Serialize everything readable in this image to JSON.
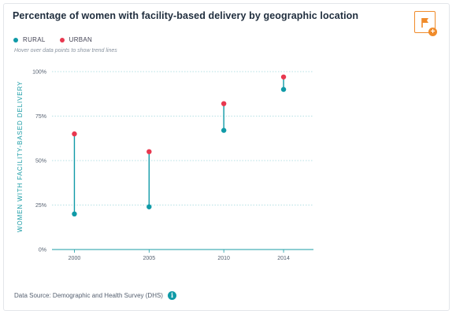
{
  "chart_data": {
    "type": "dumbbell",
    "title": "Percentage of women with facility-based delivery by geographic location",
    "hint": "Hover over data points to show trend lines",
    "ylabel": "WOMEN WITH FACILITY-BASED DELIVERY",
    "xlabel": "",
    "categories": [
      "2000",
      "2005",
      "2010",
      "2014"
    ],
    "x": [
      2000,
      2005,
      2010,
      2014
    ],
    "ylim": [
      0,
      100
    ],
    "yticks": [
      0,
      25,
      50,
      75,
      100
    ],
    "ytick_labels": [
      "0%",
      "25%",
      "50%",
      "75%",
      "100%"
    ],
    "grid": true,
    "legend_position": "top-left",
    "series": [
      {
        "name": "RURAL",
        "color": "#0f9aa7",
        "values": [
          20,
          24,
          67,
          90
        ]
      },
      {
        "name": "URBAN",
        "color": "#e8384f",
        "values": [
          65,
          55,
          82,
          97
        ]
      }
    ],
    "connector_color": "#0f9aa7",
    "source": "Data Source: Demographic and Health Survey (DHS)"
  },
  "icons": {
    "flag": "flag-icon",
    "plus": "plus-icon",
    "info": "info-icon"
  },
  "labels": {
    "plus": "+",
    "info": "i"
  },
  "colors": {
    "accent_orange": "#f08b2a",
    "teal": "#0f9aa7",
    "red": "#e8384f"
  }
}
